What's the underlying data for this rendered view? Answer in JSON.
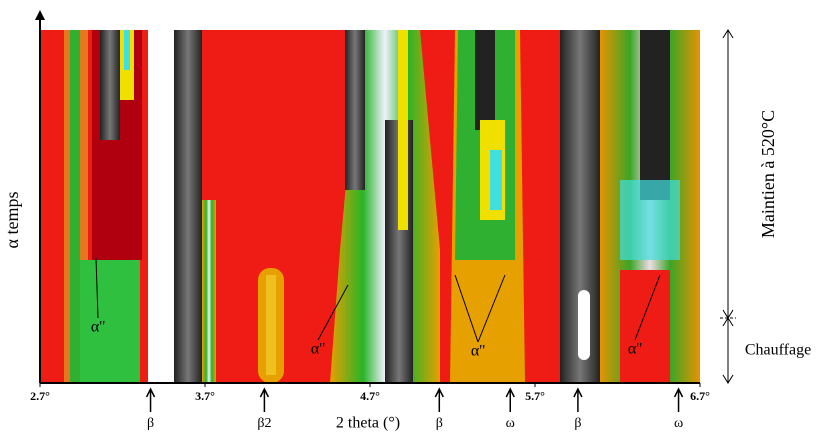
{
  "chart_data": {
    "type": "contour",
    "xlabel": "2 theta (°)",
    "ylabel": "α temps",
    "xlim": [
      2.7,
      6.7
    ],
    "xticks": [
      {
        "value": 2.7,
        "label": "2.7°"
      },
      {
        "value": 3.7,
        "label": "3.7°"
      },
      {
        "value": 4.7,
        "label": "4.7°"
      },
      {
        "value": 5.7,
        "label": "5.7°"
      },
      {
        "value": 6.7,
        "label": "6.7°"
      }
    ],
    "peak_markers": [
      {
        "label": "β",
        "x": 3.37
      },
      {
        "label": "β2",
        "x": 4.06
      },
      {
        "label": "β",
        "x": 5.12
      },
      {
        "label": "ω",
        "x": 5.55
      },
      {
        "label": "β",
        "x": 5.96
      },
      {
        "label": "ω",
        "x": 6.57
      }
    ],
    "annotations": [
      "α''",
      "α''",
      "α''",
      "α''"
    ],
    "stages": [
      "Maintien à 520°C",
      "Chauffage"
    ]
  }
}
